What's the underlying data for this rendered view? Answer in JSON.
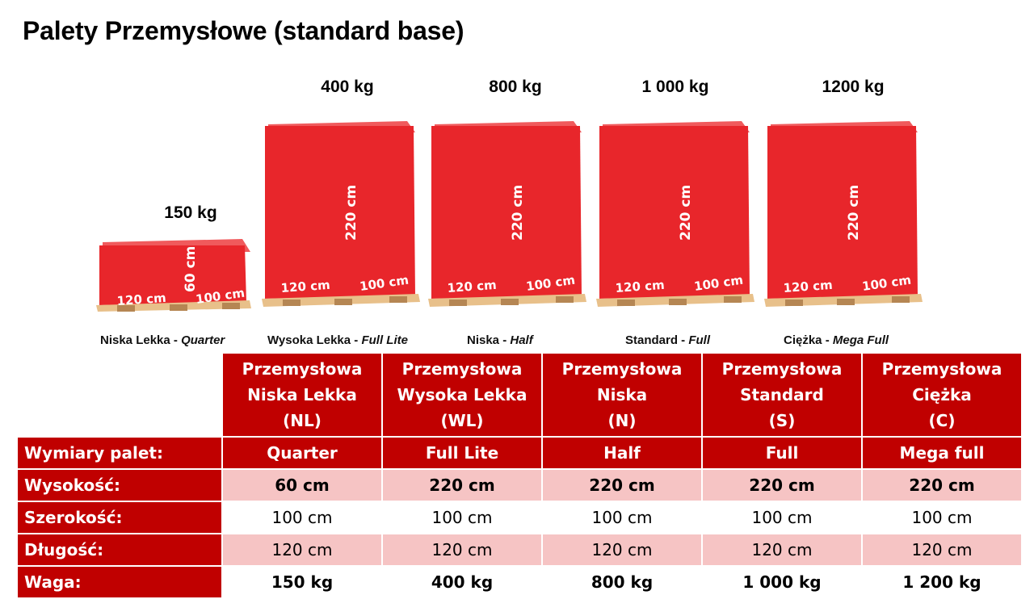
{
  "title": "Palety Przemysłowe (standard base)",
  "colors": {
    "accent": "#c00000",
    "box": "#e8262b",
    "row_alt": "#f6c4c4",
    "wood": "#e8c08a"
  },
  "pallets": [
    {
      "weight": "150 kg",
      "height_label": "60 cm",
      "length_label": "120 cm",
      "width_label": "100 cm",
      "caption_name": "Niska Lekka - ",
      "caption_type": "Quarter"
    },
    {
      "weight": "400 kg",
      "height_label": "220 cm",
      "length_label": "120 cm",
      "width_label": "100 cm",
      "caption_name": "Wysoka Lekka - ",
      "caption_type": "Full Lite"
    },
    {
      "weight": "800 kg",
      "height_label": "220 cm",
      "length_label": "120 cm",
      "width_label": "100 cm",
      "caption_name": "Niska - ",
      "caption_type": "Half"
    },
    {
      "weight": "1 000 kg",
      "height_label": "220 cm",
      "length_label": "120 cm",
      "width_label": "100 cm",
      "caption_name": "Standard - ",
      "caption_type": "Full"
    },
    {
      "weight": "1200 kg",
      "height_label": "220 cm",
      "length_label": "120 cm",
      "width_label": "100 cm",
      "caption_name": "Ciężka - ",
      "caption_type": "Mega Full"
    }
  ],
  "table": {
    "columns": [
      {
        "line1": "Przemysłowa",
        "line2": "Niska Lekka",
        "line3": "(NL)"
      },
      {
        "line1": "Przemysłowa",
        "line2": "Wysoka Lekka",
        "line3": "(WL)"
      },
      {
        "line1": "Przemysłowa",
        "line2": "Niska",
        "line3": "(N)"
      },
      {
        "line1": "Przemysłowa",
        "line2": "Standard",
        "line3": "(S)"
      },
      {
        "line1": "Przemysłowa",
        "line2": "Ciężka",
        "line3": "(C)"
      }
    ],
    "rows": [
      {
        "label": "Wymiary palet:",
        "values": [
          "Quarter",
          "Full Lite",
          "Half",
          "Full",
          "Mega full"
        ]
      },
      {
        "label": "Wysokość:",
        "values": [
          "60 cm",
          "220 cm",
          "220 cm",
          "220 cm",
          "220 cm"
        ]
      },
      {
        "label": "Szerokość:",
        "values": [
          "100 cm",
          "100 cm",
          "100 cm",
          "100 cm",
          "100 cm"
        ]
      },
      {
        "label": "Długość:",
        "values": [
          "120 cm",
          "120 cm",
          "120 cm",
          "120 cm",
          "120 cm"
        ]
      },
      {
        "label": "Waga:",
        "values": [
          "150 kg",
          "400 kg",
          "800 kg",
          "1 000 kg",
          "1 200 kg"
        ]
      }
    ]
  }
}
